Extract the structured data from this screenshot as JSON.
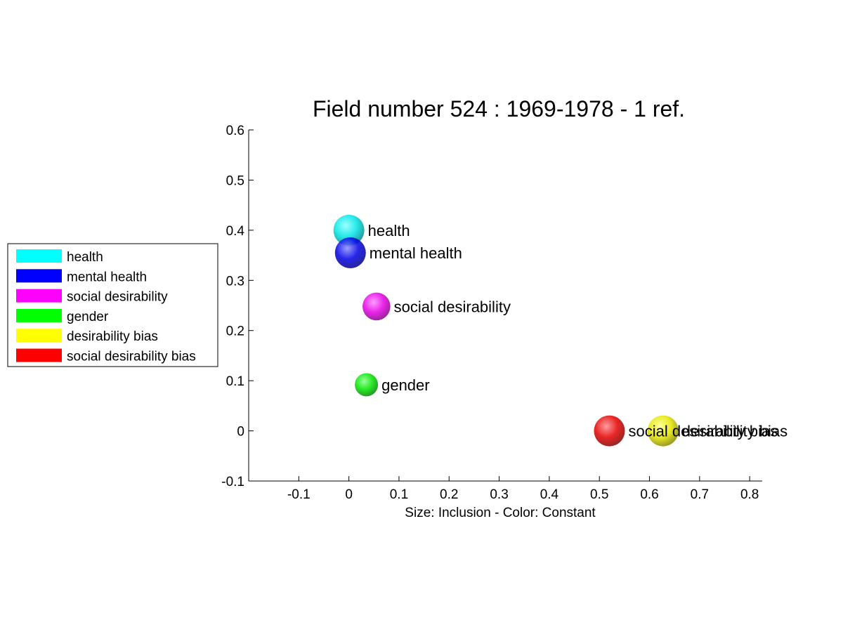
{
  "chart_data": {
    "type": "scatter",
    "title": "Field number 524 : 1969-1978  - 1 ref.",
    "xlabel": "Size: Inclusion - Color: Constant",
    "ylabel": "",
    "xlim": [
      -0.2,
      0.825
    ],
    "ylim": [
      -0.1,
      0.6
    ],
    "xticks": [
      "-0.1",
      "0",
      "0.1",
      "0.2",
      "0.3",
      "0.4",
      "0.5",
      "0.6",
      "0.7",
      "0.8"
    ],
    "yticks": [
      "-0.1",
      "0",
      "0.1",
      "0.2",
      "0.3",
      "0.4",
      "0.5",
      "0.6"
    ],
    "grid": false,
    "legend_position": "left",
    "points": [
      {
        "label": "health",
        "x": 0.0,
        "y": 0.4,
        "color": "#00ffff",
        "size": 1.0
      },
      {
        "label": "mental health",
        "x": 0.003,
        "y": 0.355,
        "color": "#0000ff",
        "size": 1.0
      },
      {
        "label": "social desirability",
        "x": 0.055,
        "y": 0.248,
        "color": "#ff00ff",
        "size": 0.9
      },
      {
        "label": "gender",
        "x": 0.035,
        "y": 0.092,
        "color": "#00ff00",
        "size": 0.75
      },
      {
        "label": "desirability bias",
        "x": 0.627,
        "y": 0.0,
        "color": "#ffff00",
        "size": 1.0
      },
      {
        "label": "social desirability bias",
        "x": 0.52,
        "y": 0.0,
        "color": "#ff0000",
        "size": 1.0
      }
    ],
    "legend": [
      {
        "label": "health",
        "color": "#00ffff"
      },
      {
        "label": "mental health",
        "color": "#0000ff"
      },
      {
        "label": "social desirability",
        "color": "#ff00ff"
      },
      {
        "label": "gender",
        "color": "#00ff00"
      },
      {
        "label": "desirability bias",
        "color": "#ffff00"
      },
      {
        "label": "social desirability bias",
        "color": "#ff0000"
      }
    ]
  }
}
